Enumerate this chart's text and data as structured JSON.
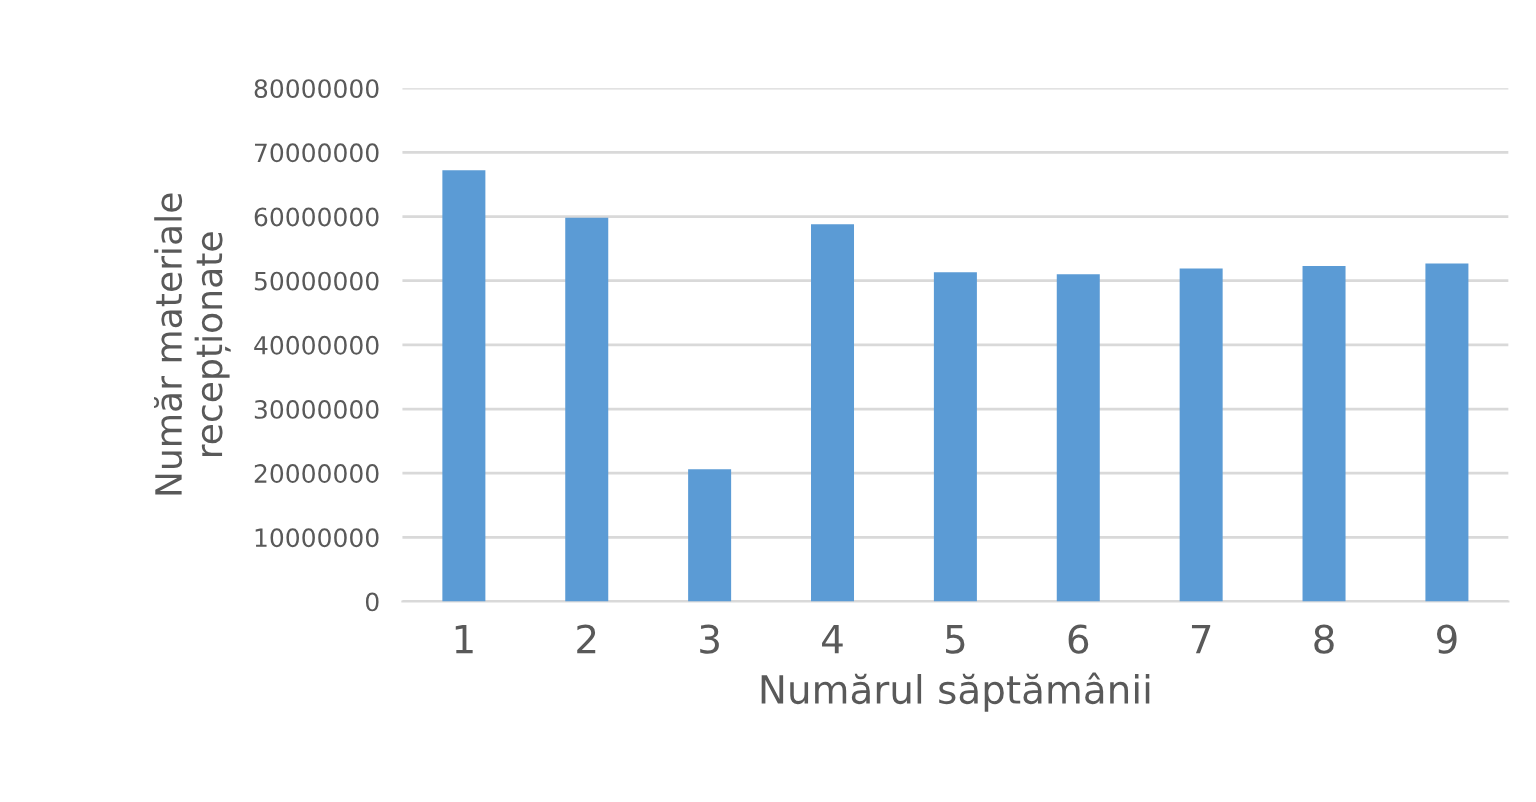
{
  "chart_data": {
    "type": "bar",
    "xlabel": "Numărul săptămânii",
    "ylabel": "Număr materiale\nrecepționate",
    "categories": [
      "1",
      "2",
      "3",
      "4",
      "5",
      "6",
      "7",
      "8",
      "9"
    ],
    "values": [
      67200000,
      59800000,
      20600000,
      58800000,
      51300000,
      51000000,
      51900000,
      52300000,
      52700000
    ],
    "color": "#5b9bd5",
    "ylim": [
      0,
      80000000
    ],
    "yticks": [
      0,
      10000000,
      20000000,
      30000000,
      40000000,
      50000000,
      60000000,
      70000000,
      80000000
    ],
    "grid": "y"
  }
}
